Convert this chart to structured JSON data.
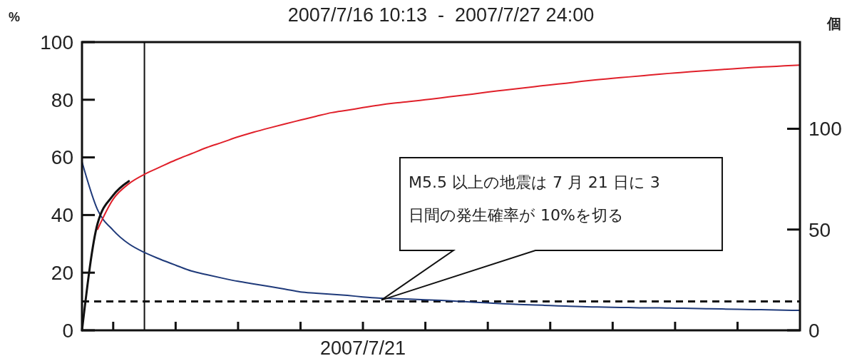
{
  "chart_data": {
    "type": "line",
    "title": "2007/7/16 10:13  -  2007/7/27 24:00",
    "ylabel": "%",
    "y2label": "個",
    "categories": [
      null,
      null,
      null,
      null,
      null,
      null,
      null,
      null,
      null,
      null,
      null,
      null,
      null,
      null,
      null,
      null,
      null,
      null,
      "2007/7/21",
      null,
      null,
      null,
      null,
      null,
      null,
      null,
      null,
      null,
      null,
      null,
      null,
      null,
      null,
      null,
      null,
      null,
      null,
      null,
      null,
      null,
      null,
      null,
      null,
      null,
      null,
      null,
      null
    ],
    "ylim": [
      0,
      100
    ],
    "yticks": [
      0,
      20,
      40,
      60,
      80,
      100
    ],
    "y2lim": [
      0,
      143
    ],
    "y2ticks": [
      0,
      50,
      100
    ],
    "grid": false,
    "marker": "none",
    "line_style": "solid",
    "series": [
      {
        "color": "#1f3a7a",
        "values": [
          58.5,
          41.8,
          34.7,
          30.0,
          27.0,
          24.7,
          22.6,
          20.6,
          19.3,
          18.1,
          17.0,
          16.1,
          15.2,
          14.3,
          13.3,
          12.9,
          12.5,
          12.1,
          11.6,
          11.2,
          11.0,
          10.8,
          10.6,
          10.4,
          10.1,
          9.8,
          9.5,
          9.2,
          9.0,
          8.8,
          8.6,
          8.4,
          8.2,
          8.1,
          8.0,
          7.9,
          7.8,
          7.8,
          7.7,
          7.6,
          7.5,
          7.4,
          7.3,
          7.2,
          7.1,
          7.0,
          6.9
        ]
      },
      {
        "color": "#e0202a",
        "axis": "y2",
        "values": [
          null,
          50.1,
          65.1,
          72.7,
          77.4,
          81.0,
          84.5,
          87.6,
          90.7,
          93.3,
          96.0,
          98.3,
          100.4,
          102.4,
          104.3,
          106.2,
          108.0,
          109.2,
          110.5,
          111.7,
          112.7,
          113.5,
          114.4,
          115.3,
          116.3,
          117.2,
          118.2,
          119.1,
          120.0,
          120.9,
          121.8,
          122.6,
          123.5,
          124.3,
          125.0,
          125.7,
          126.4,
          127.1,
          127.7,
          128.3,
          128.8,
          129.4,
          129.9,
          130.4,
          130.8,
          131.2,
          131.6
        ]
      },
      {
        "color": "#111111",
        "axis": "y2",
        "values": [
          0,
          53,
          67,
          74,
          null,
          null,
          null,
          null,
          null,
          null,
          null,
          null,
          null,
          null,
          null,
          null,
          null,
          null,
          null,
          null,
          null,
          null,
          null,
          null,
          null,
          null,
          null,
          null,
          null,
          null,
          null,
          null,
          null,
          null,
          null,
          null,
          null,
          null,
          null,
          null,
          null,
          null,
          null,
          null,
          null,
          null,
          null
        ]
      }
    ],
    "ref_lines": [
      {
        "axis": "y",
        "value": 10,
        "label": null,
        "line_style": "dashed",
        "color": "#111111"
      }
    ],
    "annotations": [
      "M5.5 以上の地震は 7 月 21 日に 3\n日間の発生確率が 10%を切る"
    ]
  }
}
